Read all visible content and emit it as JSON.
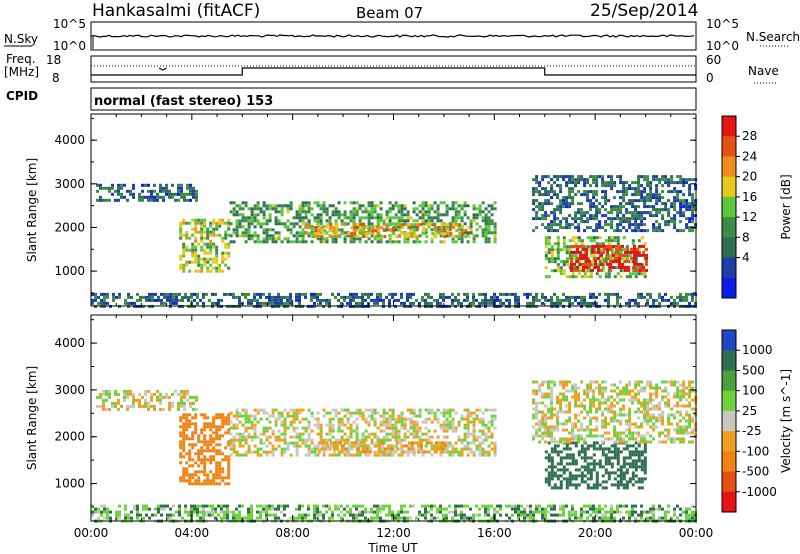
{
  "header": {
    "station": "Hankasalmi (fitACF)",
    "beam": "Beam 07",
    "date": "25/Sep/2014"
  },
  "noise_panel": {
    "left_label": "N.Sky",
    "right_label": "N.Search",
    "left_ticks": [
      "10^5",
      "10^0"
    ],
    "right_ticks": [
      "10^5",
      "10^0"
    ]
  },
  "freq_panel": {
    "left_label_1": "Freq.",
    "left_label_2": "[MHz]",
    "left_ticks": [
      "18",
      "8"
    ],
    "right_label": "Nave",
    "right_ticks": [
      "60",
      "0"
    ]
  },
  "cpid": {
    "label": "CPID",
    "value": "normal (fast stereo) 153"
  },
  "colors": {
    "power_scale": [
      "#0a1ee6",
      "#1e3caa",
      "#2f6e55",
      "#3c8c46",
      "#5ac83c",
      "#e6c81e",
      "#f08c1e",
      "#e65014",
      "#e61414"
    ],
    "velocity_scale": [
      "#1e46c8",
      "#2f6e50",
      "#4aa03c",
      "#6ed23c",
      "#c8c8be",
      "#f0a01e",
      "#f08214",
      "#e65014",
      "#e61414"
    ]
  },
  "chart_data": [
    {
      "type": "heatmap",
      "title": "Power",
      "xlabel": "",
      "ylabel": "Slant Range [km]",
      "x_ticks": [
        "00:00",
        "04:00",
        "08:00",
        "12:00",
        "16:00",
        "20:00",
        "00:00"
      ],
      "y_ticks": [
        "1000",
        "2000",
        "3000",
        "4000"
      ],
      "ylim": [
        200,
        4600
      ],
      "colorbar": {
        "label": "Power [dB]",
        "ticks": [
          "28",
          "24",
          "20",
          "16",
          "12",
          "8",
          "4"
        ],
        "range": [
          0,
          30
        ]
      },
      "echo_regions": [
        {
          "x_range_h": [
            0.2,
            4.2
          ],
          "range_km": [
            2600,
            3000
          ],
          "level_db": 8
        },
        {
          "x_range_h": [
            3.5,
            5.5
          ],
          "range_km": [
            1000,
            2200
          ],
          "level_db": 16
        },
        {
          "x_range_h": [
            5.5,
            16.0
          ],
          "range_km": [
            1700,
            2600
          ],
          "level_db": 12
        },
        {
          "x_range_h": [
            8.5,
            15.0
          ],
          "range_km": [
            1800,
            2100
          ],
          "level_db": 20
        },
        {
          "x_range_h": [
            18.0,
            22.0
          ],
          "range_km": [
            900,
            1800
          ],
          "level_db": 14
        },
        {
          "x_range_h": [
            19.0,
            22.0
          ],
          "range_km": [
            1000,
            1600
          ],
          "level_db": 28
        },
        {
          "x_range_h": [
            17.5,
            24.0
          ],
          "range_km": [
            1900,
            3200
          ],
          "level_db": 8
        },
        {
          "x_range_h": [
            0.0,
            24.0
          ],
          "range_km": [
            200,
            500
          ],
          "level_db": 8
        }
      ]
    },
    {
      "type": "heatmap",
      "title": "Velocity",
      "xlabel": "Time UT",
      "ylabel": "Slant Range [km]",
      "x_ticks": [
        "00:00",
        "04:00",
        "08:00",
        "12:00",
        "16:00",
        "20:00",
        "00:00"
      ],
      "y_ticks": [
        "1000",
        "2000",
        "3000",
        "4000"
      ],
      "ylim": [
        200,
        4600
      ],
      "colorbar": {
        "label": "Velocity [m s^-1]",
        "ticks": [
          "1000",
          "500",
          "100",
          "25",
          "-25",
          "-100",
          "-500",
          "-1000"
        ],
        "range": [
          -1200,
          1200
        ]
      },
      "echo_regions": [
        {
          "x_range_h": [
            0.2,
            4.2
          ],
          "range_km": [
            2600,
            3000
          ],
          "velocity": 0
        },
        {
          "x_range_h": [
            3.5,
            5.5
          ],
          "range_km": [
            1000,
            2500
          ],
          "velocity": -300
        },
        {
          "x_range_h": [
            5.5,
            16.0
          ],
          "range_km": [
            1600,
            2600
          ],
          "velocity": 0
        },
        {
          "x_range_h": [
            9.0,
            14.0
          ],
          "range_km": [
            1650,
            1900
          ],
          "velocity": -60
        },
        {
          "x_range_h": [
            18.0,
            22.0
          ],
          "range_km": [
            900,
            1900
          ],
          "velocity": 200
        },
        {
          "x_range_h": [
            17.5,
            24.0
          ],
          "range_km": [
            1900,
            3200
          ],
          "velocity": 0
        },
        {
          "x_range_h": [
            0.0,
            24.0
          ],
          "range_km": [
            200,
            550
          ],
          "velocity": 80
        }
      ]
    }
  ]
}
